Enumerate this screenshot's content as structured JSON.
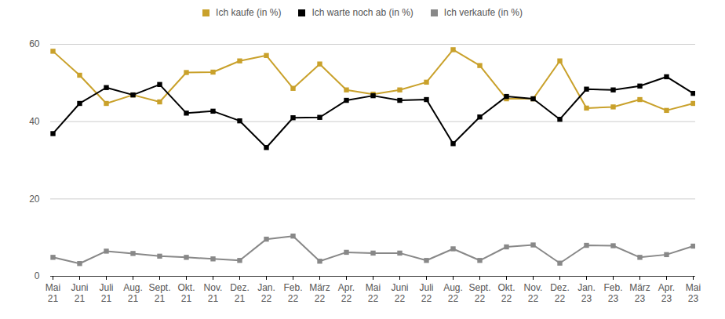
{
  "chart_data": {
    "type": "line",
    "categories": [
      "Mai 21",
      "Juni 21",
      "Juli 21",
      "Aug. 21",
      "Sept. 21",
      "Okt. 21",
      "Nov. 21",
      "Dez. 21",
      "Jan. 22",
      "Feb. 22",
      "März 22",
      "Apr. 22",
      "Mai 22",
      "Juni 22",
      "Juli 22",
      "Aug. 22",
      "Sept. 22",
      "Okt. 22",
      "Nov. 22",
      "Dez. 22",
      "Jan. 23",
      "Feb. 23",
      "März 23",
      "Apr. 23",
      "Mai 23"
    ],
    "series": [
      {
        "name": "Ich kaufe (in %)",
        "color": "#c9a12b",
        "values": [
          58.2,
          52.0,
          44.7,
          46.9,
          45.1,
          52.7,
          52.8,
          55.7,
          57.1,
          48.6,
          54.9,
          48.2,
          47.1,
          48.2,
          50.2,
          58.6,
          54.5,
          45.9,
          45.9,
          55.7,
          43.5,
          43.8,
          45.7,
          42.9,
          44.7
        ]
      },
      {
        "name": "Ich warte noch ab (in %)",
        "color": "#000000",
        "values": [
          36.9,
          44.7,
          48.8,
          46.9,
          49.6,
          42.2,
          42.7,
          40.2,
          33.3,
          41.0,
          41.1,
          45.5,
          46.7,
          45.5,
          45.7,
          34.3,
          41.2,
          46.5,
          45.9,
          40.6,
          48.4,
          48.2,
          49.2,
          51.6,
          47.3
        ]
      },
      {
        "name": "Ich verkaufe (in %)",
        "color": "#888888",
        "values": [
          4.9,
          3.3,
          6.5,
          5.9,
          5.2,
          4.9,
          4.5,
          4.1,
          9.6,
          10.4,
          3.9,
          6.2,
          6.0,
          6.0,
          4.1,
          7.1,
          4.1,
          7.6,
          8.1,
          3.4,
          8.0,
          7.9,
          4.9,
          5.6,
          7.8
        ]
      }
    ],
    "ylim": [
      0,
      60
    ],
    "yticks": [
      0,
      20,
      40,
      60
    ],
    "grid": true,
    "marker": "square",
    "legend": "top"
  }
}
